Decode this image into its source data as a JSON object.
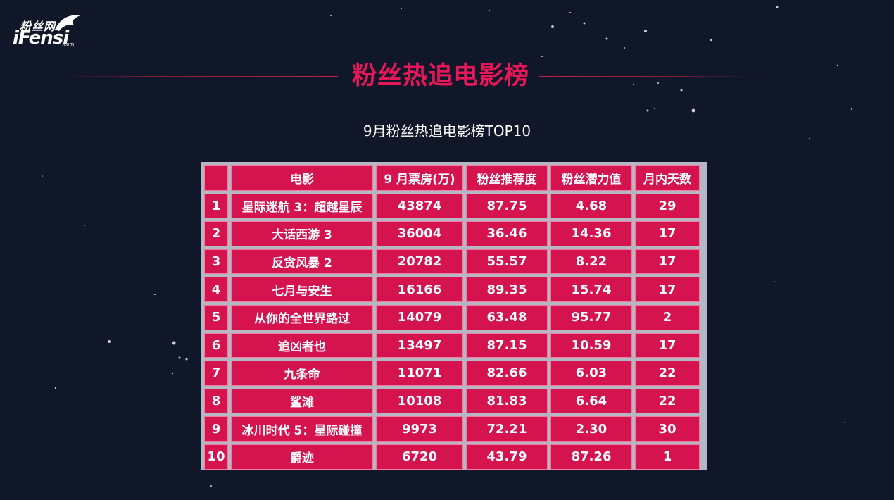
{
  "logo": {
    "cn": "粉丝网",
    "en": "iFensi",
    "suffix": ".com"
  },
  "headline": "粉丝热追电影榜",
  "subtitle": "9月粉丝热追电影榜TOP10",
  "table": {
    "headers": [
      "",
      "电影",
      "9 月票房(万)",
      "粉丝推荐度",
      "粉丝潜力值",
      "月内天数"
    ],
    "rows": [
      [
        "1",
        "星际迷航 3：超越星辰",
        "43874",
        "87.75",
        "4.68",
        "29"
      ],
      [
        "2",
        "大话西游 3",
        "36004",
        "36.46",
        "14.36",
        "17"
      ],
      [
        "3",
        "反贪风暴 2",
        "20782",
        "55.57",
        "8.22",
        "17"
      ],
      [
        "4",
        "七月与安生",
        "16166",
        "89.35",
        "15.74",
        "17"
      ],
      [
        "5",
        "从你的全世界路过",
        "14079",
        "63.48",
        "95.77",
        "2"
      ],
      [
        "6",
        "追凶者也",
        "13497",
        "87.15",
        "10.59",
        "17"
      ],
      [
        "7",
        "九条命",
        "11071",
        "82.66",
        "6.03",
        "22"
      ],
      [
        "8",
        "鲨滩",
        "10108",
        "81.83",
        "6.64",
        "22"
      ],
      [
        "9",
        "冰川时代 5：星际碰撞",
        "9973",
        "72.21",
        "2.30",
        "30"
      ],
      [
        "10",
        "爵迹",
        "6720",
        "43.79",
        "87.26",
        "1"
      ]
    ]
  },
  "colors": {
    "background": "#101729",
    "accent": "#e8175a",
    "cell": "#d4134f",
    "grid": "#b5b8c4"
  }
}
